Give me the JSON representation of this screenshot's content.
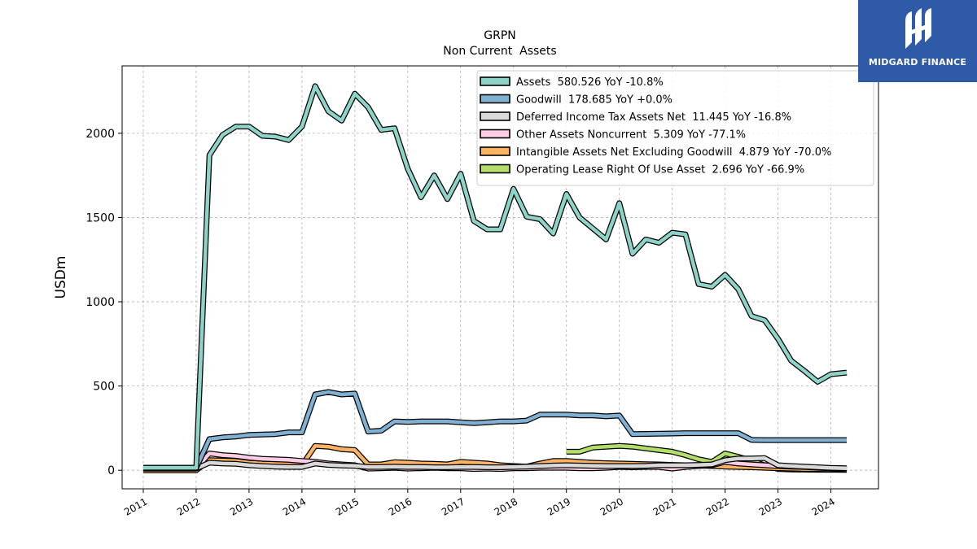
{
  "chart_data": {
    "type": "line",
    "title": "GRPN",
    "subtitle": "Non Current  Assets",
    "ylabel": "USDm",
    "xlabel": "",
    "xlim": [
      2010.6,
      2024.9
    ],
    "ylim": [
      -110,
      2400
    ],
    "x_ticks": [
      2011,
      2012,
      2013,
      2014,
      2015,
      2016,
      2017,
      2018,
      2019,
      2020,
      2021,
      2022,
      2023,
      2024
    ],
    "y_ticks": [
      0,
      500,
      1000,
      1500,
      2000
    ],
    "grid": true,
    "legend_position": "top-right",
    "series": [
      {
        "name": "Assets  580.526 YoY -10.8%",
        "color": "#8dd3c7",
        "x": [
          2011.0,
          2012.0,
          2012.25,
          2012.5,
          2012.75,
          2013.0,
          2013.25,
          2013.5,
          2013.75,
          2014.0,
          2014.25,
          2014.5,
          2014.75,
          2015.0,
          2015.25,
          2015.5,
          2015.75,
          2016.0,
          2016.25,
          2016.5,
          2016.75,
          2017.0,
          2017.25,
          2017.5,
          2017.75,
          2018.0,
          2018.25,
          2018.5,
          2018.75,
          2019.0,
          2019.25,
          2019.5,
          2019.75,
          2020.0,
          2020.25,
          2020.5,
          2020.75,
          2021.0,
          2021.25,
          2021.5,
          2021.75,
          2022.0,
          2022.25,
          2022.5,
          2022.75,
          2023.0,
          2023.25,
          2023.5,
          2023.75,
          2024.0,
          2024.3
        ],
        "values": [
          15,
          15,
          1870,
          1990,
          2040,
          2040,
          1985,
          1980,
          1960,
          2040,
          2280,
          2130,
          2075,
          2235,
          2155,
          2020,
          2030,
          1790,
          1620,
          1750,
          1610,
          1760,
          1480,
          1430,
          1430,
          1670,
          1505,
          1490,
          1405,
          1640,
          1500,
          1435,
          1370,
          1585,
          1285,
          1370,
          1350,
          1410,
          1400,
          1105,
          1090,
          1160,
          1075,
          915,
          890,
          780,
          650,
          590,
          525,
          570,
          580
        ]
      },
      {
        "name": "Goodwill  178.685 YoY +0.0%",
        "color": "#80b1d3",
        "x": [
          2011.0,
          2012.0,
          2012.25,
          2012.5,
          2012.75,
          2013.0,
          2013.25,
          2013.5,
          2013.75,
          2014.0,
          2014.25,
          2014.5,
          2014.75,
          2015.0,
          2015.25,
          2015.5,
          2015.75,
          2016.0,
          2016.25,
          2016.5,
          2016.75,
          2017.0,
          2017.25,
          2017.5,
          2017.75,
          2018.0,
          2018.25,
          2018.5,
          2018.75,
          2019.0,
          2019.25,
          2019.5,
          2019.75,
          2020.0,
          2020.25,
          2020.5,
          2020.75,
          2021.0,
          2021.25,
          2021.5,
          2021.75,
          2022.0,
          2022.25,
          2022.5,
          2022.75,
          2023.0,
          2023.25,
          2023.5,
          2023.75,
          2024.0,
          2024.3
        ],
        "values": [
          15,
          15,
          185,
          195,
          200,
          210,
          212,
          215,
          225,
          225,
          450,
          465,
          450,
          455,
          230,
          235,
          290,
          287,
          290,
          290,
          290,
          285,
          280,
          285,
          290,
          290,
          295,
          330,
          330,
          330,
          326,
          326,
          320,
          325,
          215,
          216,
          217,
          218,
          220,
          220,
          220,
          220,
          220,
          180,
          179,
          179,
          179,
          179,
          179,
          179,
          179
        ]
      },
      {
        "name": "Deferred Income Tax Assets Net  11.445 YoY -16.8%",
        "color": "#d9d9d9",
        "x": [
          2011.0,
          2012.0,
          2012.25,
          2012.5,
          2012.75,
          2013.0,
          2013.25,
          2013.5,
          2013.75,
          2014.0,
          2014.25,
          2014.5,
          2014.75,
          2015.0,
          2015.25,
          2015.5,
          2015.75,
          2016.0,
          2016.25,
          2016.5,
          2016.75,
          2017.0,
          2017.25,
          2017.5,
          2017.75,
          2018.0,
          2018.25,
          2018.5,
          2018.75,
          2019.0,
          2019.25,
          2019.5,
          2019.75,
          2020.0,
          2020.25,
          2020.5,
          2020.75,
          2021.0,
          2021.25,
          2021.5,
          2021.75,
          2022.0,
          2022.25,
          2022.5,
          2022.75,
          2023.0,
          2023.25,
          2023.5,
          2023.75,
          2024.0,
          2024.3
        ],
        "values": [
          10,
          10,
          45,
          40,
          38,
          30,
          25,
          22,
          20,
          20,
          40,
          32,
          28,
          26,
          20,
          20,
          22,
          20,
          20,
          18,
          18,
          20,
          20,
          18,
          18,
          20,
          22,
          25,
          28,
          30,
          28,
          26,
          25,
          25,
          25,
          26,
          30,
          30,
          30,
          32,
          35,
          60,
          70,
          70,
          72,
          30,
          25,
          22,
          18,
          14,
          11.4
        ]
      },
      {
        "name": "Other Assets Noncurrent  5.309 YoY -77.1%",
        "color": "#fccde5",
        "x": [
          2011.0,
          2012.0,
          2012.25,
          2012.5,
          2012.75,
          2013.0,
          2013.25,
          2013.5,
          2013.75,
          2014.0,
          2014.25,
          2014.5,
          2014.75,
          2015.0,
          2015.25,
          2015.5,
          2015.75,
          2016.0,
          2016.25,
          2016.5,
          2016.75,
          2017.0,
          2017.25,
          2017.5,
          2017.75,
          2018.0,
          2018.25,
          2018.5,
          2018.75,
          2019.0,
          2019.25,
          2019.5,
          2019.75,
          2020.0,
          2020.25,
          2020.5,
          2020.75,
          2021.0,
          2021.25,
          2021.5,
          2021.75,
          2022.0,
          2022.25,
          2022.5,
          2022.75,
          2023.0,
          2023.25,
          2023.5,
          2023.75,
          2024.0,
          2024.3
        ],
        "values": [
          10,
          10,
          100,
          90,
          85,
          75,
          68,
          65,
          62,
          55,
          50,
          40,
          35,
          30,
          10,
          12,
          15,
          10,
          12,
          15,
          12,
          12,
          8,
          10,
          8,
          12,
          12,
          15,
          15,
          15,
          12,
          12,
          15,
          20,
          18,
          20,
          20,
          10,
          20,
          25,
          30,
          50,
          40,
          35,
          30,
          25,
          22,
          20,
          15,
          12,
          5.3
        ]
      },
      {
        "name": "Intangible Assets Net Excluding Goodwill  4.879 YoY -70.0%",
        "color": "#fdb462",
        "x": [
          2011.0,
          2012.0,
          2012.25,
          2012.5,
          2012.75,
          2013.0,
          2013.25,
          2013.5,
          2013.75,
          2014.0,
          2014.25,
          2014.5,
          2014.75,
          2015.0,
          2015.25,
          2015.5,
          2015.75,
          2016.0,
          2016.25,
          2016.5,
          2016.75,
          2017.0,
          2017.25,
          2017.5,
          2017.75,
          2018.0,
          2018.25,
          2018.5,
          2018.75,
          2019.0,
          2019.25,
          2019.5,
          2019.75,
          2020.0,
          2020.25,
          2020.5,
          2020.75,
          2021.0,
          2021.25,
          2021.5,
          2021.75,
          2022.0,
          2022.25,
          2022.5,
          2022.75,
          2023.0,
          2023.25,
          2023.5,
          2023.75,
          2024.0,
          2024.3
        ],
        "values": [
          0,
          0,
          60,
          58,
          55,
          45,
          40,
          38,
          36,
          30,
          145,
          140,
          125,
          120,
          35,
          35,
          48,
          45,
          40,
          38,
          35,
          50,
          45,
          40,
          30,
          25,
          22,
          40,
          55,
          55,
          50,
          45,
          42,
          40,
          38,
          36,
          35,
          32,
          30,
          28,
          25,
          22,
          20,
          18,
          15,
          12,
          10,
          8,
          7,
          6,
          4.9
        ]
      },
      {
        "name": "Operating Lease Right Of Use Asset  2.696 YoY -66.9%",
        "color": "#b3de69",
        "x": [
          2019.0,
          2019.25,
          2019.5,
          2019.75,
          2020.0,
          2020.25,
          2020.5,
          2020.75,
          2021.0,
          2021.25,
          2021.5,
          2021.75,
          2022.0,
          2022.25,
          2022.5,
          2022.75,
          2023.0,
          2023.25,
          2023.5,
          2023.75,
          2024.0,
          2024.3
        ],
        "values": [
          110,
          110,
          135,
          140,
          145,
          140,
          130,
          120,
          110,
          90,
          65,
          50,
          100,
          80,
          55,
          30,
          8,
          5,
          4,
          3,
          3,
          2.7
        ]
      }
    ]
  },
  "branding": {
    "logo_text": "MIDGARD FINANCE"
  }
}
